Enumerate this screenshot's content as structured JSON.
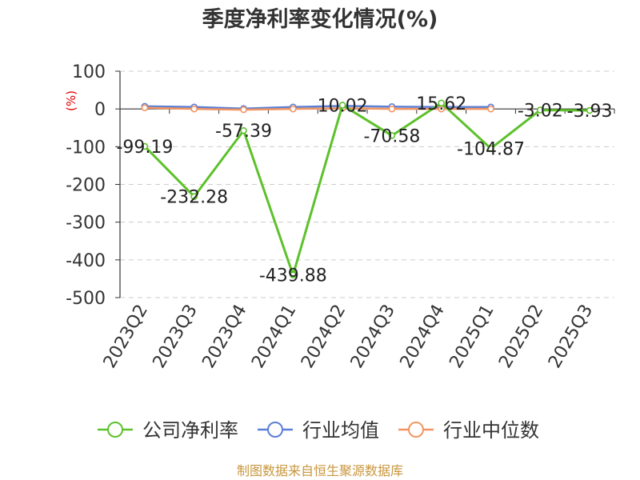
{
  "chart_data": {
    "type": "line",
    "title": "季度净利率变化情况(%)",
    "ylabel": "(%)",
    "ylim": [
      -500,
      100
    ],
    "yticks": [
      "100",
      "0",
      "-100",
      "-200",
      "-300",
      "-400",
      "-500"
    ],
    "categories": [
      "2023Q2",
      "2023Q3",
      "2023Q4",
      "2024Q1",
      "2024Q2",
      "2024Q3",
      "2024Q4",
      "2025Q1",
      "2025Q2",
      "2025Q3"
    ],
    "series": [
      {
        "name": "公司净利率",
        "color": "#5dc12b",
        "values": [
          -99.19,
          -232.28,
          -57.39,
          -439.88,
          10.02,
          -70.58,
          15.62,
          -104.87,
          -3.02,
          -3.93
        ],
        "labels": [
          "-99.19",
          "-232.28",
          "-57.39",
          "-439.88",
          "10.02",
          "-70.58",
          "15.62",
          "-104.87",
          "-3.02",
          "-3.93"
        ]
      },
      {
        "name": "行业均值",
        "color": "#5b7fd6",
        "values": [
          7,
          5,
          1,
          5,
          8,
          6,
          5,
          5,
          null,
          null
        ]
      },
      {
        "name": "行业中位数",
        "color": "#f29561",
        "values": [
          3,
          0,
          -2,
          0,
          2,
          0,
          0,
          0,
          null,
          null
        ]
      }
    ],
    "grid": true,
    "legend_position": "bottom"
  },
  "source": "制图数据来自恒生聚源数据库"
}
